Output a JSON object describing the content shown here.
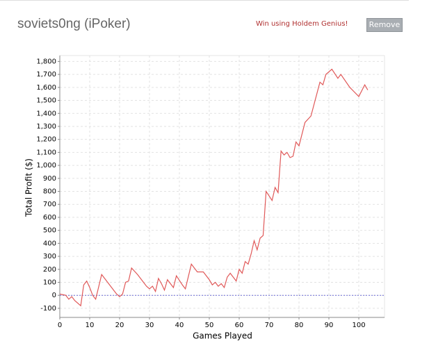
{
  "header": {
    "title": "soviets0ng (iPoker)",
    "promo": "Win using Holdem Genius!",
    "button": "Remove"
  },
  "chart_data": {
    "type": "line",
    "xlabel": "Games Played",
    "ylabel": "Total Profit ($)",
    "xlim": [
      0,
      108.6
    ],
    "ylim": [
      -170,
      1845
    ],
    "xticks": [
      0,
      10,
      20,
      30,
      40,
      50,
      60,
      70,
      80,
      90,
      100
    ],
    "yticks": [
      -100,
      0,
      100,
      200,
      300,
      400,
      500,
      600,
      700,
      800,
      900,
      {
        "value": 1000,
        "label": "1,000"
      },
      {
        "value": 1100,
        "label": "1,100"
      },
      {
        "value": 1200,
        "label": "1,200"
      },
      {
        "value": 1300,
        "label": "1,300"
      },
      {
        "value": 1400,
        "label": "1,400"
      },
      {
        "value": 1500,
        "label": "1,500"
      },
      {
        "value": 1600,
        "label": "1,600"
      },
      {
        "value": 1700,
        "label": "1,700"
      },
      {
        "value": 1800,
        "label": "1,800"
      }
    ],
    "grid": true,
    "baseline": 0,
    "baseline_color": "#6b6bd6",
    "series": [
      {
        "color": "#e05858",
        "x": [
          0,
          1,
          2,
          3,
          4,
          5,
          7,
          8,
          9,
          10,
          11,
          12,
          14,
          16,
          18,
          19,
          20,
          21,
          22,
          23,
          24,
          26,
          28,
          29,
          30,
          31,
          32,
          33,
          34,
          35,
          36,
          38,
          39,
          41,
          42,
          44,
          46,
          48,
          50,
          51,
          52,
          53,
          54,
          55,
          56,
          57,
          59,
          60,
          61,
          62,
          63,
          64,
          65,
          66,
          67,
          68,
          69,
          71,
          72,
          73,
          74,
          75,
          76,
          77,
          78,
          79,
          80,
          82,
          84,
          87,
          88,
          89,
          91,
          93,
          94,
          97,
          100,
          102,
          103
        ],
        "values": [
          10,
          5,
          0,
          -30,
          -10,
          -40,
          -80,
          80,
          110,
          60,
          0,
          -30,
          160,
          100,
          40,
          10,
          -10,
          10,
          100,
          110,
          210,
          160,
          100,
          70,
          50,
          70,
          30,
          130,
          90,
          40,
          120,
          60,
          150,
          80,
          50,
          240,
          180,
          180,
          120,
          80,
          100,
          70,
          90,
          60,
          140,
          170,
          110,
          200,
          170,
          260,
          240,
          320,
          420,
          350,
          440,
          460,
          800,
          730,
          830,
          790,
          1110,
          1080,
          1100,
          1060,
          1070,
          1180,
          1150,
          1330,
          1380,
          1640,
          1620,
          1700,
          1740,
          1670,
          1700,
          1600,
          1530,
          1620,
          1580
        ]
      }
    ]
  }
}
